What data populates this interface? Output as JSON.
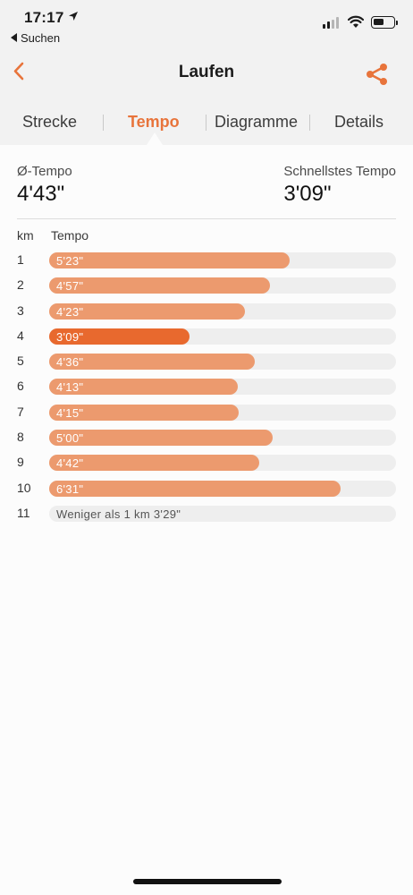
{
  "status": {
    "time": "17:17",
    "back_app": "Suchen"
  },
  "nav": {
    "title": "Laufen"
  },
  "tabs": [
    {
      "label": "Strecke",
      "active": false
    },
    {
      "label": "Tempo",
      "active": true
    },
    {
      "label": "Diagramme",
      "active": false
    },
    {
      "label": "Details",
      "active": false
    }
  ],
  "summary": {
    "avg_label": "Ø-Tempo",
    "avg_value": "4'43\"",
    "fastest_label": "Schnellstes Tempo",
    "fastest_value": "3'09\""
  },
  "columns": {
    "km": "km",
    "tempo": "Tempo"
  },
  "colors": {
    "accent": "#e8743b",
    "bar": "#ec9a6e",
    "bar_fastest": "#e8692e",
    "track": "#eeeeee"
  },
  "chart_data": {
    "type": "bar",
    "categories": [
      "1",
      "2",
      "3",
      "4",
      "5",
      "6",
      "7",
      "8",
      "9",
      "10",
      "11"
    ],
    "labels": [
      "5'23\"",
      "4'57\"",
      "4'23\"",
      "3'09\"",
      "4'36\"",
      "4'13\"",
      "4'15\"",
      "5'00\"",
      "4'42\"",
      "6'31\"",
      "Weniger als 1 km 3'29\""
    ],
    "values_seconds": [
      323,
      297,
      263,
      189,
      276,
      253,
      255,
      300,
      282,
      391,
      null
    ],
    "fastest_index": 3,
    "xlim_seconds": [
      0,
      466
    ]
  }
}
